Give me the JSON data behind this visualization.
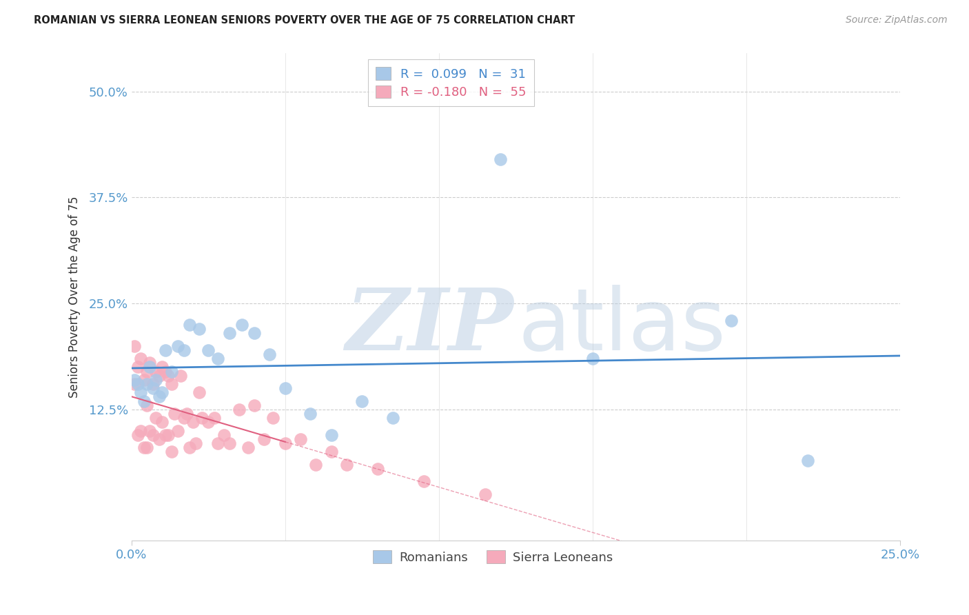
{
  "title": "ROMANIAN VS SIERRA LEONEAN SENIORS POVERTY OVER THE AGE OF 75 CORRELATION CHART",
  "source": "Source: ZipAtlas.com",
  "ylabel": "Seniors Poverty Over the Age of 75",
  "ytick_labels": [
    "50.0%",
    "37.5%",
    "25.0%",
    "12.5%"
  ],
  "ytick_values": [
    0.5,
    0.375,
    0.25,
    0.125
  ],
  "xlim": [
    0.0,
    0.25
  ],
  "ylim": [
    -0.03,
    0.545
  ],
  "romanian_R": 0.099,
  "romanian_N": 31,
  "sierraleonean_R": -0.18,
  "sierraleonean_N": 55,
  "romanian_color": "#a8c8e8",
  "sierraleonean_color": "#f5aabb",
  "trendline_romanian_color": "#4488cc",
  "trendline_sierraleonean_color": "#e06080",
  "background_color": "#ffffff",
  "grid_color": "#cccccc",
  "axis_label_color": "#5599cc",
  "romanians_x": [
    0.001,
    0.002,
    0.003,
    0.004,
    0.005,
    0.006,
    0.007,
    0.008,
    0.009,
    0.01,
    0.011,
    0.013,
    0.015,
    0.017,
    0.019,
    0.022,
    0.025,
    0.028,
    0.032,
    0.036,
    0.04,
    0.045,
    0.05,
    0.058,
    0.065,
    0.075,
    0.085,
    0.12,
    0.15,
    0.195,
    0.22
  ],
  "romanians_y": [
    0.16,
    0.155,
    0.145,
    0.135,
    0.155,
    0.175,
    0.15,
    0.16,
    0.14,
    0.145,
    0.195,
    0.17,
    0.2,
    0.195,
    0.225,
    0.22,
    0.195,
    0.185,
    0.215,
    0.225,
    0.215,
    0.19,
    0.15,
    0.12,
    0.095,
    0.135,
    0.115,
    0.42,
    0.185,
    0.23,
    0.065
  ],
  "sierraleoneans_x": [
    0.001,
    0.001,
    0.002,
    0.002,
    0.003,
    0.003,
    0.004,
    0.004,
    0.005,
    0.005,
    0.005,
    0.006,
    0.006,
    0.007,
    0.007,
    0.008,
    0.008,
    0.009,
    0.009,
    0.01,
    0.01,
    0.011,
    0.011,
    0.012,
    0.012,
    0.013,
    0.013,
    0.014,
    0.015,
    0.016,
    0.017,
    0.018,
    0.019,
    0.02,
    0.021,
    0.022,
    0.023,
    0.025,
    0.027,
    0.028,
    0.03,
    0.032,
    0.035,
    0.038,
    0.04,
    0.043,
    0.046,
    0.05,
    0.055,
    0.06,
    0.065,
    0.07,
    0.08,
    0.095,
    0.115
  ],
  "sierraleoneans_y": [
    0.2,
    0.155,
    0.175,
    0.095,
    0.185,
    0.1,
    0.16,
    0.08,
    0.17,
    0.13,
    0.08,
    0.18,
    0.1,
    0.155,
    0.095,
    0.17,
    0.115,
    0.165,
    0.09,
    0.175,
    0.11,
    0.17,
    0.095,
    0.165,
    0.095,
    0.155,
    0.075,
    0.12,
    0.1,
    0.165,
    0.115,
    0.12,
    0.08,
    0.11,
    0.085,
    0.145,
    0.115,
    0.11,
    0.115,
    0.085,
    0.095,
    0.085,
    0.125,
    0.08,
    0.13,
    0.09,
    0.115,
    0.085,
    0.09,
    0.06,
    0.075,
    0.06,
    0.055,
    0.04,
    0.025
  ],
  "trendline_sl_x_end": 0.13,
  "minor_xticks": [
    0.05,
    0.1,
    0.15,
    0.2
  ]
}
